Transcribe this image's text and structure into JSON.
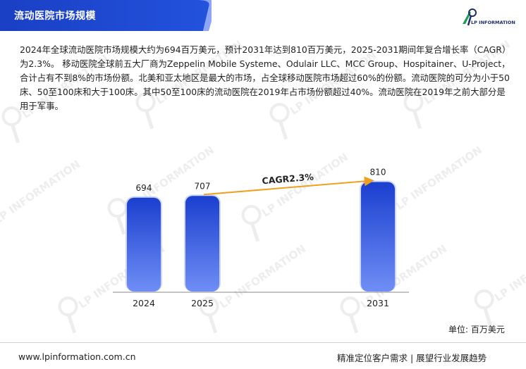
{
  "header": {
    "title": "流动医院市场规模",
    "logo_text": "LP INFORMATION",
    "brand_color": "#1a45c8"
  },
  "description": "2024年全球流动医院市场规模大约为694百万美元，预计2031年达到810百万美元，2025-2031期间年复合增长率（CAGR）为2.3%。 移动医院全球前五大厂商为Zeppelin Mobile Systeme、Odulair LLC、MCC Group、Hospitainer、U-Project，合计占有不到8%的市场份额。北美和亚太地区是最大的市场，占全球移动医院市场超过60%的份额。流动医院的可分为小于50床、50至100床和大于100床。其中50至100床的流动医院在2019年占市场份额超过40%。流动医院在2019年之前大部分是用于军事。",
  "chart_data": {
    "type": "bar",
    "categories": [
      "2024",
      "2025",
      "2031"
    ],
    "values": [
      694,
      707,
      810
    ],
    "annotation": "CAGR2.3%",
    "bar_color_top": "#1b3fcf",
    "bar_color_bottom": "#6f8ef5",
    "arrow_color": "#f0a020"
  },
  "unit_label": "单位: 百万美元",
  "watermark_text": "LP INFORMATION",
  "footer": {
    "website": "www.lpinformation.com.cn",
    "slogan": "精准定位客户需求 | 展望行业发展趋势"
  }
}
